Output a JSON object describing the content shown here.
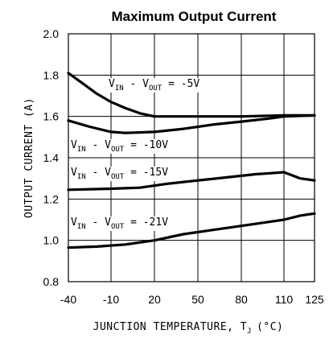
{
  "chart_data": {
    "type": "line",
    "title": "Maximum Output Current",
    "xlabel": "JUNCTION TEMPERATURE, T",
    "xlabel_sub": "J",
    "xlabel_unit": "(°C)",
    "ylabel": "OUTPUT CURRENT (A)",
    "x_tick_labels": [
      "-40",
      "-10",
      "20",
      "50",
      "80",
      "110",
      "125"
    ],
    "y_tick_labels": [
      "0.8",
      "1.0",
      "1.2",
      "1.4",
      "1.6",
      "1.8",
      "2.0"
    ],
    "xlim": [
      -40,
      125
    ],
    "ylim": [
      0.8,
      2.0
    ],
    "grid": true,
    "series": [
      {
        "name": "VIN - VOUT = -5V",
        "label_parts": [
          "V",
          "IN",
          " - V",
          "OUT",
          " = -5V"
        ],
        "x": [
          -40,
          -30,
          -20,
          -10,
          0,
          10,
          20,
          35,
          50,
          80,
          110,
          125
        ],
        "y": [
          1.81,
          1.76,
          1.71,
          1.67,
          1.64,
          1.615,
          1.6,
          1.6,
          1.6,
          1.6,
          1.605,
          1.605
        ]
      },
      {
        "name": "VIN - VOUT = -10V",
        "label_parts": [
          "V",
          "IN",
          " - V",
          "OUT",
          " = -10V"
        ],
        "x": [
          -40,
          -25,
          -10,
          0,
          20,
          40,
          60,
          80,
          100,
          110,
          125
        ],
        "y": [
          1.58,
          1.55,
          1.525,
          1.52,
          1.525,
          1.54,
          1.56,
          1.575,
          1.59,
          1.6,
          1.605
        ]
      },
      {
        "name": "VIN - VOUT = -15V",
        "label_parts": [
          "V",
          "IN",
          " - V",
          "OUT",
          " = -15V"
        ],
        "x": [
          -40,
          -10,
          10,
          30,
          50,
          70,
          90,
          100,
          110,
          118,
          125
        ],
        "y": [
          1.245,
          1.25,
          1.255,
          1.275,
          1.29,
          1.305,
          1.32,
          1.325,
          1.33,
          1.3,
          1.29
        ]
      },
      {
        "name": "VIN - VOUT = -21V",
        "label_parts": [
          "V",
          "IN",
          " - V",
          "OUT",
          " = -21V"
        ],
        "x": [
          -40,
          -20,
          0,
          20,
          40,
          60,
          80,
          100,
          110,
          118,
          125
        ],
        "y": [
          0.965,
          0.97,
          0.98,
          1.0,
          1.03,
          1.05,
          1.07,
          1.09,
          1.1,
          1.12,
          1.13
        ]
      }
    ]
  }
}
